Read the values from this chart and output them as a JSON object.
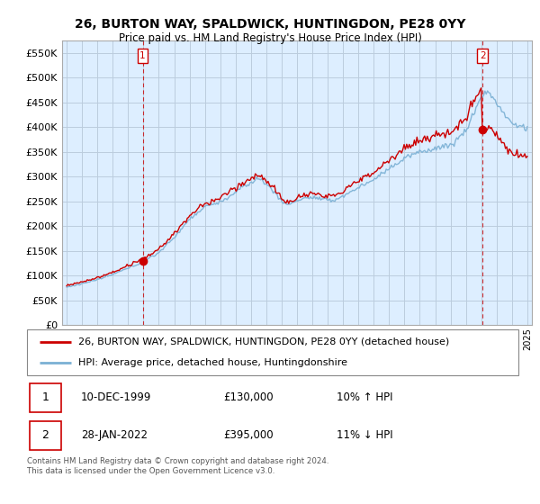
{
  "title": "26, BURTON WAY, SPALDWICK, HUNTINGDON, PE28 0YY",
  "subtitle": "Price paid vs. HM Land Registry's House Price Index (HPI)",
  "legend_line1": "26, BURTON WAY, SPALDWICK, HUNTINGDON, PE28 0YY (detached house)",
  "legend_line2": "HPI: Average price, detached house, Huntingdonshire",
  "sale1_date": "10-DEC-1999",
  "sale1_price": "£130,000",
  "sale1_hpi": "10% ↑ HPI",
  "sale2_date": "28-JAN-2022",
  "sale2_price": "£395,000",
  "sale2_hpi": "11% ↓ HPI",
  "footer": "Contains HM Land Registry data © Crown copyright and database right 2024.\nThis data is licensed under the Open Government Licence v3.0.",
  "red_color": "#cc0000",
  "blue_color": "#7ab0d4",
  "chart_bg": "#ddeeff",
  "bg_color": "#ffffff",
  "grid_color": "#bbccdd",
  "ylim": [
    0,
    575000
  ],
  "yticks": [
    0,
    50000,
    100000,
    150000,
    200000,
    250000,
    300000,
    350000,
    400000,
    450000,
    500000,
    550000
  ],
  "xlim_start": 1994.7,
  "xlim_end": 2025.3,
  "sale1_x": 1999.95,
  "sale1_y": 130000,
  "sale2_x": 2022.08,
  "sale2_y": 395000
}
